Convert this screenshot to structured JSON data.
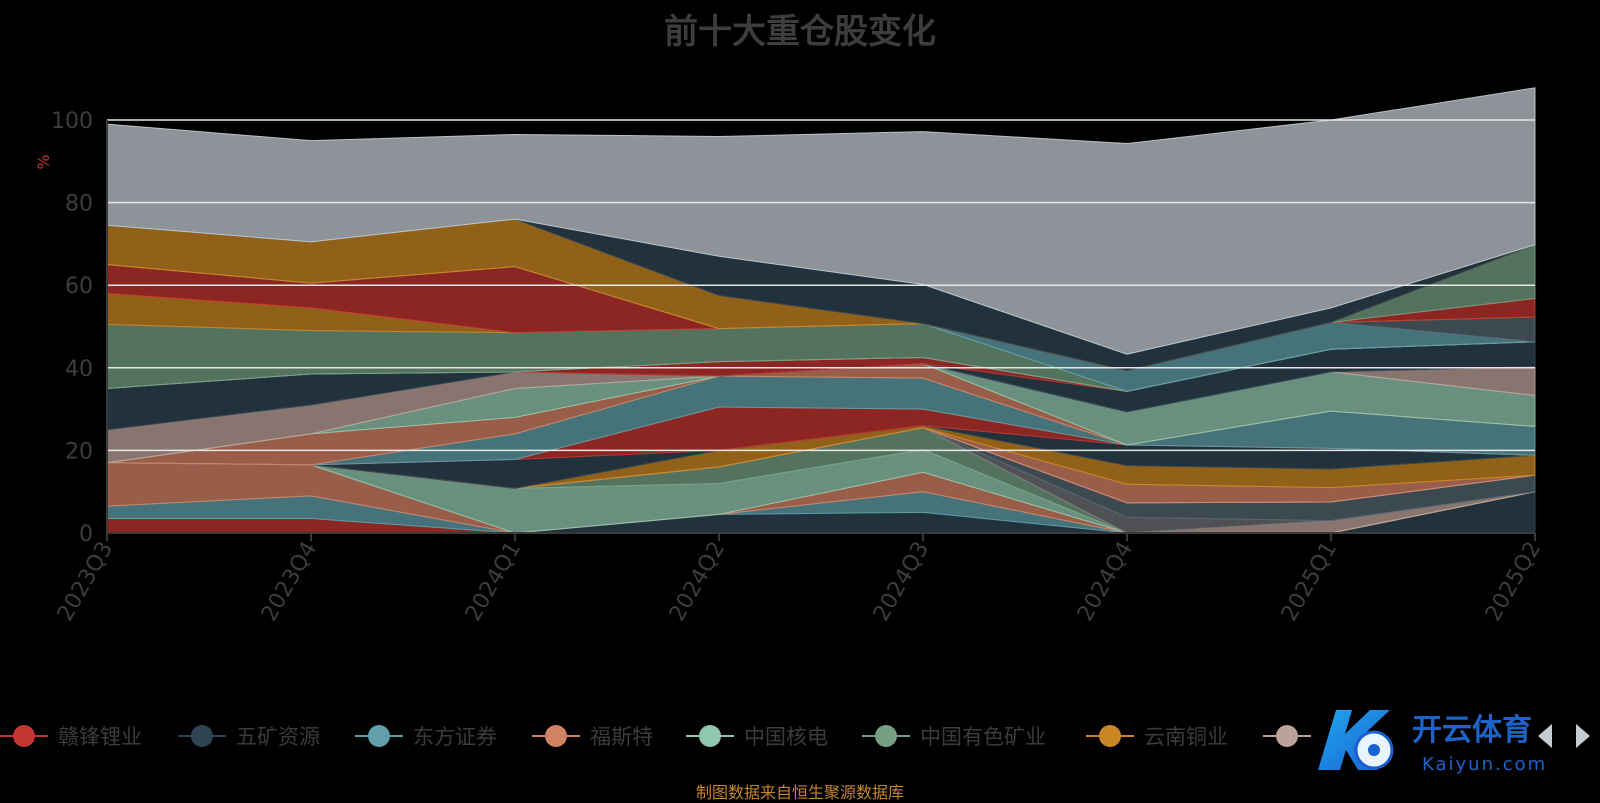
{
  "chart_data": {
    "type": "area",
    "stacked": true,
    "title": "前十大重仓股变化",
    "ylabel": "%",
    "xlabel": "",
    "ylim": [
      0,
      100
    ],
    "yticks": [
      "0",
      "20",
      "40",
      "60",
      "80",
      "100"
    ],
    "categories": [
      "2023Q3",
      "2023Q4",
      "2024Q1",
      "2024Q2",
      "2024Q3",
      "2024Q4",
      "2025Q1",
      "2025Q2"
    ],
    "grid": true,
    "legend_position": "bottom",
    "series": [
      {
        "name": "赣锋锂业",
        "color": "#c23531",
        "values": [
          3.5,
          3.5,
          0,
          0,
          0,
          0,
          0,
          0
        ]
      },
      {
        "name": "五矿资源",
        "color": "#2f4554",
        "values": [
          0,
          0,
          0,
          4.5,
          5.0,
          0,
          0,
          10.0
        ]
      },
      {
        "name": "东方证券",
        "color": "#61a0a8",
        "values": [
          3.0,
          5.5,
          0,
          0,
          5.0,
          0,
          0,
          0
        ]
      },
      {
        "name": "福斯特",
        "color": "#d48265",
        "values": [
          10.5,
          7.5,
          0,
          0,
          4.7,
          0,
          0,
          0
        ]
      },
      {
        "name": "中国核电",
        "color": "#91c7ae",
        "values": [
          0,
          0,
          10.8,
          7.5,
          5.5,
          0,
          0,
          0
        ]
      },
      {
        "name": "中国有色矿业",
        "color": "#749f83",
        "values": [
          0,
          0,
          0,
          4.0,
          5.3,
          0,
          0,
          0
        ]
      },
      {
        "name": "云南铜业",
        "color": "#ca8622",
        "values": [
          0,
          0,
          0,
          0,
          0,
          0,
          0,
          0
        ]
      },
      {
        "name": "",
        "color": "#bda29a",
        "values": [
          0,
          0,
          0,
          0,
          0,
          0,
          3.0,
          0
        ]
      },
      {
        "name": "",
        "color": "#6e7074",
        "values": [
          0,
          0,
          0,
          0,
          0,
          3.8,
          0,
          0
        ]
      },
      {
        "name": "",
        "color": "#546570",
        "values": [
          0,
          0,
          0,
          0,
          0,
          3.5,
          4.5,
          4.0
        ]
      },
      {
        "name": "",
        "color": "#c4ccd3",
        "values": [
          0,
          0,
          0,
          0,
          0,
          0,
          0,
          0
        ]
      },
      {
        "name": "",
        "color": "#d48265",
        "values": [
          0,
          0,
          0,
          0,
          0,
          4.5,
          3.5,
          0
        ]
      },
      {
        "name": "",
        "color": "#ca8622",
        "values": [
          0,
          0,
          0,
          4.0,
          0.5,
          4.5,
          4.5,
          4.8
        ]
      },
      {
        "name": "",
        "color": "#2f4554",
        "values": [
          0,
          0,
          7.0,
          0,
          0,
          5.0,
          5.0,
          0
        ]
      },
      {
        "name": "",
        "color": "#c23531",
        "values": [
          0,
          0,
          0,
          10.5,
          4.0,
          0,
          0,
          0
        ]
      },
      {
        "name": "",
        "color": "#61a0a8",
        "values": [
          0,
          0,
          6.2,
          7.5,
          7.5,
          0,
          9.0,
          7.0
        ]
      },
      {
        "name": "",
        "color": "#d48265",
        "values": [
          0,
          7.5,
          4.0,
          0,
          3.5,
          0,
          0,
          0
        ]
      },
      {
        "name": "",
        "color": "#91c7ae",
        "values": [
          0,
          0,
          7.0,
          0,
          0,
          8.0,
          9.5,
          7.5
        ]
      },
      {
        "name": "",
        "color": "#bda29a",
        "values": [
          8.0,
          7.0,
          4.0,
          0,
          0,
          0,
          0,
          7.0
        ]
      },
      {
        "name": "",
        "color": "#2f4554",
        "values": [
          10.0,
          7.5,
          0,
          0,
          0,
          5.0,
          5.5,
          6.0
        ]
      },
      {
        "name": "",
        "color": "#c23531",
        "values": [
          0,
          0,
          0,
          3.5,
          1.5,
          0,
          0,
          0
        ]
      },
      {
        "name": "",
        "color": "#91c7ae",
        "values": [
          0,
          0,
          0,
          0,
          0,
          0,
          0,
          0
        ]
      },
      {
        "name": "",
        "color": "#749f83",
        "values": [
          15.5,
          10.5,
          9.5,
          8.0,
          8.2,
          0,
          0,
          0
        ]
      },
      {
        "name": "",
        "color": "#61a0a8",
        "values": [
          0,
          0,
          0,
          0,
          0,
          5.0,
          6.5,
          0
        ]
      },
      {
        "name": "",
        "color": "#546570",
        "values": [
          0,
          0,
          0,
          0,
          0,
          0,
          0,
          6.0
        ]
      },
      {
        "name": "",
        "color": "#ca8622",
        "values": [
          7.5,
          5.5,
          0,
          0,
          0,
          0,
          0,
          0
        ]
      },
      {
        "name": "",
        "color": "#c23531",
        "values": [
          7.0,
          6.0,
          16.0,
          0,
          0,
          0,
          0,
          4.5
        ]
      },
      {
        "name": "",
        "color": "#749f83",
        "values": [
          0,
          0,
          0,
          0,
          0,
          0,
          0,
          13.0
        ]
      },
      {
        "name": "",
        "color": "#ca8622",
        "values": [
          9.5,
          10.0,
          11.5,
          8.0,
          0,
          0,
          0,
          0
        ]
      },
      {
        "name": "",
        "color": "#2f4554",
        "values": [
          0,
          0,
          0,
          9.5,
          9.5,
          4.0,
          3.5,
          0
        ]
      },
      {
        "name": "",
        "color": "#c4ccd3",
        "values": [
          24.5,
          24.5,
          20.5,
          29.0,
          37.0,
          51.0,
          45.5,
          38.0
        ]
      }
    ]
  },
  "legend": {
    "items": [
      {
        "label": "赣锋锂业",
        "color": "#c23531"
      },
      {
        "label": "五矿资源",
        "color": "#2f4554"
      },
      {
        "label": "东方证券",
        "color": "#61a0a8"
      },
      {
        "label": "福斯特",
        "color": "#d48265"
      },
      {
        "label": "中国核电",
        "color": "#91c7ae"
      },
      {
        "label": "中国有色矿业",
        "color": "#749f83"
      },
      {
        "label": "云南铜业",
        "color": "#ca8622"
      },
      {
        "label": "",
        "color": "#bda29a"
      }
    ]
  },
  "source_note": "制图数据来自恒生聚源数据库",
  "watermark": {
    "brand": "开云体育",
    "domain": "Kaiyun.com",
    "icon": "kaiyun-logo-icon"
  },
  "nav": {
    "prev_icon": "arrow-left-icon",
    "next_icon": "arrow-right-icon"
  }
}
